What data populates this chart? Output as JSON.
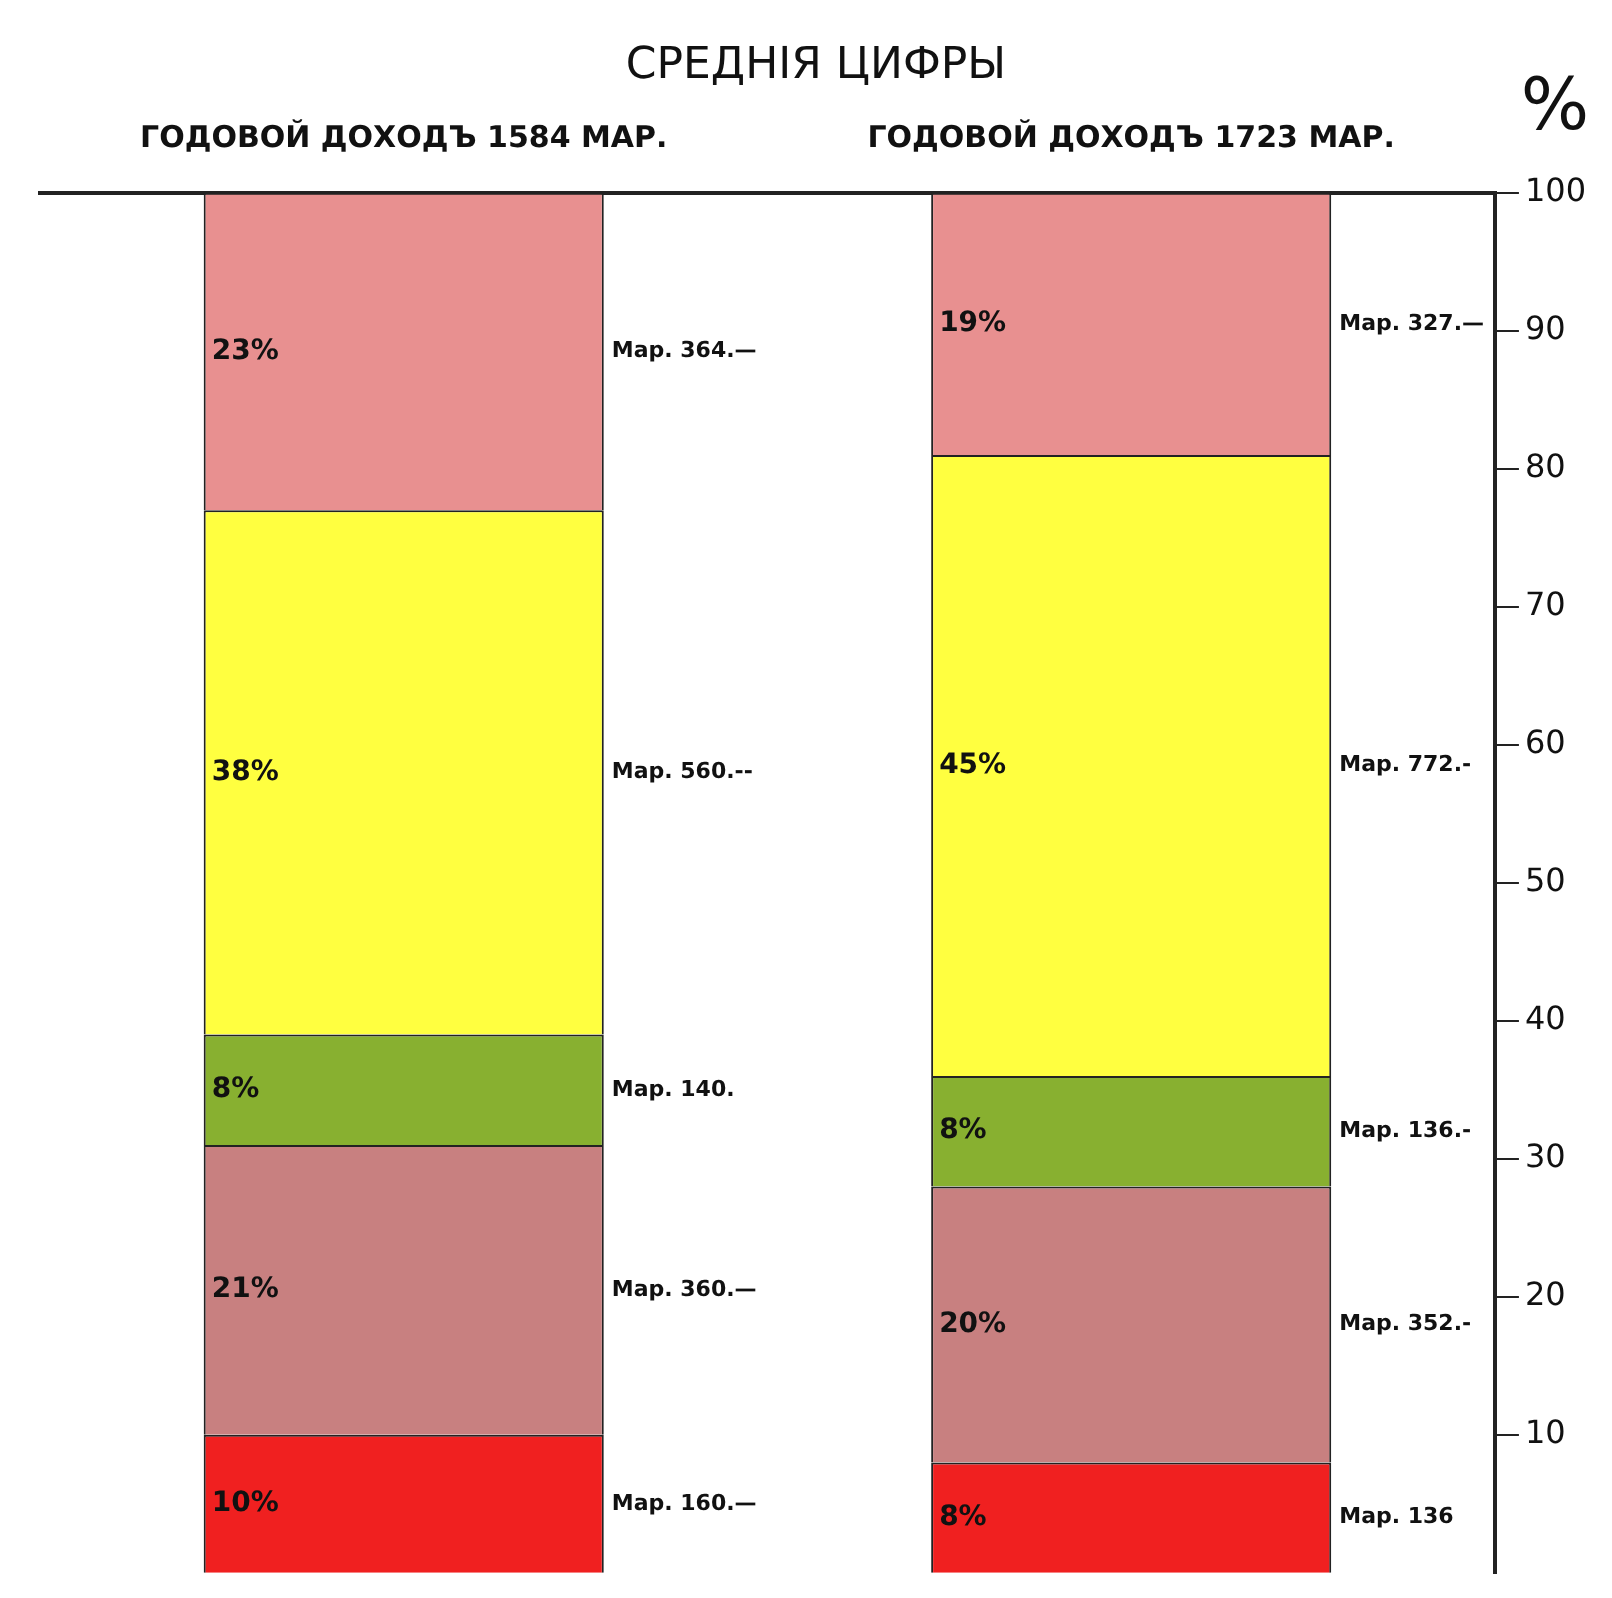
{
  "chart_data": {
    "type": "bar",
    "stacked": true,
    "title": "СРЕДНІЯ ЦИФРЫ",
    "ylabel": "%",
    "categories": [
      "ГОДОВОЙ ДОХОДЪ 1584 МАР.",
      "ГОДОВОЙ ДОХОДЪ 1723 МАР."
    ],
    "series": [
      {
        "color": "#f02020",
        "values": [
          10,
          8
        ],
        "value_labels": [
          "10%",
          "8%"
        ]
      },
      {
        "color": "#c88080",
        "values": [
          21,
          20
        ],
        "value_labels": [
          "21%",
          "20%"
        ]
      },
      {
        "color": "#88b030",
        "values": [
          8,
          8
        ],
        "value_labels": [
          "8%",
          "8%"
        ]
      },
      {
        "color": "#ffff40",
        "values": [
          38,
          45
        ],
        "value_labels": [
          "38%",
          "45%"
        ]
      },
      {
        "color": "#e89090",
        "values": [
          23,
          19
        ],
        "value_labels": [
          "23%",
          "19%"
        ]
      }
    ],
    "ylim": [
      0,
      100
    ],
    "yticks": [
      10,
      20,
      30,
      40,
      50,
      60,
      70,
      80,
      90,
      100
    ],
    "grid": false,
    "legend": false,
    "annotations": [
      "Мар. 160.—",
      "Мар. 360.—",
      "Мар. 140.",
      "Мар. 560.--",
      "Мар. 364.—",
      "Мар. 136",
      "Мар. 352.-",
      "Мар. 136.-",
      "Мар. 772.-",
      "Мар. 327.—"
    ]
  }
}
